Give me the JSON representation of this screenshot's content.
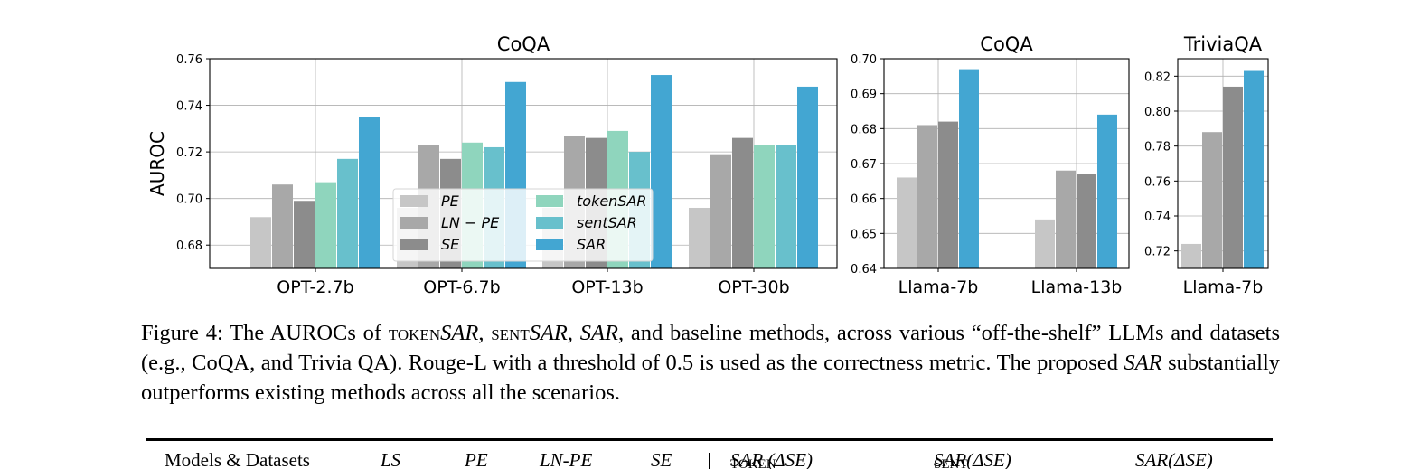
{
  "colors": {
    "PE": "#c6c6c6",
    "LN - PE": "#a8a8a8",
    "SE": "#8c8c8c",
    "tokenSAR": "#8fd5bd",
    "sentSAR": "#68c0cc",
    "SAR": "#43a6d2"
  },
  "legend": {
    "entries": [
      "PE",
      "LN − PE",
      "SE",
      "tokenSAR",
      "sentSAR",
      "SAR"
    ]
  },
  "chart_data": [
    {
      "type": "bar",
      "title": "CoQA",
      "ylabel": "AUROC",
      "xlabel": "",
      "ylim": [
        0.67,
        0.76
      ],
      "yticks": [
        0.68,
        0.7,
        0.72,
        0.74,
        0.76
      ],
      "ytick_labels": [
        "0.68",
        "0.70",
        "0.72",
        "0.74",
        "0.76"
      ],
      "grid": true,
      "legend_position": "lower-center",
      "categories": [
        "OPT-2.7b",
        "OPT-6.7b",
        "OPT-13b",
        "OPT-30b"
      ],
      "series": [
        {
          "name": "PE",
          "values": [
            0.692,
            0.696,
            0.696,
            0.696
          ]
        },
        {
          "name": "LN − PE",
          "values": [
            0.706,
            0.723,
            0.727,
            0.719
          ]
        },
        {
          "name": "SE",
          "values": [
            0.699,
            0.717,
            0.726,
            0.726
          ]
        },
        {
          "name": "tokenSAR",
          "values": [
            0.707,
            0.724,
            0.729,
            0.723
          ]
        },
        {
          "name": "sentSAR",
          "values": [
            0.717,
            0.722,
            0.72,
            0.723
          ]
        },
        {
          "name": "SAR",
          "values": [
            0.735,
            0.75,
            0.753,
            0.748
          ]
        }
      ]
    },
    {
      "type": "bar",
      "title": "CoQA",
      "ylabel": "",
      "xlabel": "",
      "ylim": [
        0.64,
        0.7
      ],
      "yticks": [
        0.64,
        0.65,
        0.66,
        0.67,
        0.68,
        0.69,
        0.7
      ],
      "ytick_labels": [
        "0.64",
        "0.65",
        "0.66",
        "0.67",
        "0.68",
        "0.69",
        "0.70"
      ],
      "grid": true,
      "categories": [
        "Llama-7b",
        "Llama-13b"
      ],
      "series": [
        {
          "name": "PE",
          "values": [
            0.666,
            0.654
          ]
        },
        {
          "name": "LN − PE",
          "values": [
            0.681,
            0.668
          ]
        },
        {
          "name": "SE",
          "values": [
            0.682,
            0.667
          ]
        },
        {
          "name": "SAR",
          "values": [
            0.697,
            0.684
          ]
        }
      ]
    },
    {
      "type": "bar",
      "title": "TriviaQA",
      "ylabel": "",
      "xlabel": "",
      "ylim": [
        0.71,
        0.83
      ],
      "yticks": [
        0.72,
        0.74,
        0.76,
        0.78,
        0.8,
        0.82
      ],
      "ytick_labels": [
        "0.72",
        "0.74",
        "0.76",
        "0.78",
        "0.80",
        "0.82"
      ],
      "grid": true,
      "categories": [
        "Llama-7b"
      ],
      "series": [
        {
          "name": "PE",
          "values": [
            0.724
          ]
        },
        {
          "name": "LN − PE",
          "values": [
            0.788
          ]
        },
        {
          "name": "SE",
          "values": [
            0.814
          ]
        },
        {
          "name": "SAR",
          "values": [
            0.823
          ]
        }
      ]
    }
  ],
  "caption": {
    "p1": "Figure 4: The AUROCs of ",
    "token": "token",
    "sar": "SAR",
    "p2": ", ",
    "sent": "sent",
    "p3": ", ",
    "p4": ", and baseline methods, across various “off-the-shelf” LLMs and datasets (e.g., CoQA, and Trivia QA). Rouge-L with a threshold of 0.5 is used as the correctness metric. The proposed ",
    "p5": " substantially outperforms existing methods across all the scenarios."
  },
  "table_header": {
    "models": "Models & Datasets",
    "ls": "LS",
    "pe": "PE",
    "lnpe": "LN-PE",
    "se": "SE",
    "tok_a": "token",
    "tok_b": "SAR (ΔSE)",
    "sent_a": "sent",
    "sent_b": "SAR(ΔSE)",
    "sar": "SAR(ΔSE)"
  }
}
